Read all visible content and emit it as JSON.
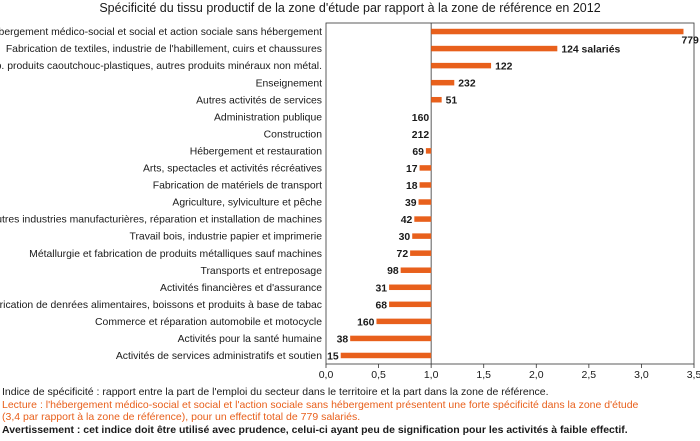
{
  "chart_data": {
    "type": "bar",
    "orientation": "horizontal",
    "title": "Spécificité du tissu productif de la zone d'étude par rapport à la zone de référence en 2012",
    "xlim": [
      0,
      3.5
    ],
    "x_ticks": [
      "0,0",
      "0,5",
      "1,0",
      "1,5",
      "2,0",
      "2,5",
      "3,0",
      "3,5"
    ],
    "reference_line": 1.0,
    "bar_color": "#e8601c",
    "categories": [
      "Hébergement médico-social et social et action sociale sans hébergement",
      "Fabrication de textiles, industrie de l'habillement, cuirs et chaussures",
      "Fab. produits caoutchouc-plastiques, autres produits minéraux non métal.",
      "Enseignement",
      "Autres activités de services",
      "Administration publique",
      "Construction",
      "Hébergement et restauration",
      "Arts, spectacles et activités récréatives",
      "Fabrication de matériels de transport",
      "Agriculture, sylviculture et pêche",
      "Autres industries manufacturières, réparation et installation de machines",
      "Travail bois, industrie papier et imprimerie",
      "Métallurgie et fabrication de produits métalliques sauf machines",
      "Transports et entreposage",
      "Activités financières et d'assurance",
      "Fabrication de denrées alimentaires, boissons et produits à base de tabac",
      "Commerce et réparation automobile et motocycle",
      "Activités pour la santé humaine",
      "Activités de services administratifs et soutien"
    ],
    "values": [
      3.4,
      2.2,
      1.57,
      1.22,
      1.1,
      1.0,
      1.0,
      0.95,
      0.89,
      0.89,
      0.88,
      0.84,
      0.82,
      0.8,
      0.71,
      0.6,
      0.6,
      0.48,
      0.23,
      0.14
    ],
    "data_labels": [
      "779",
      "124 salariés",
      "122",
      "232",
      "51",
      "160",
      "212",
      "69",
      "17",
      "18",
      "39",
      "42",
      "30",
      "72",
      "98",
      "31",
      "68",
      "160",
      "38",
      "15"
    ]
  },
  "notes": {
    "definition": "Indice de spécificité : rapport entre la part de l'emploi du secteur dans le territoire et la part dans la zone de référence.",
    "reading_line1": "Lecture : l'hébergement médico-social et social et l'action sociale sans hébergement présentent une forte spécificité dans la zone d'étude",
    "reading_line2": "(3,4 par rapport à la zone de référence), pour un effectif total de 779 salariés.",
    "warning": "Avertissement : cet indice doit être utilisé avec prudence, celui-ci ayant peu de signification pour les activités à faible effectif."
  }
}
